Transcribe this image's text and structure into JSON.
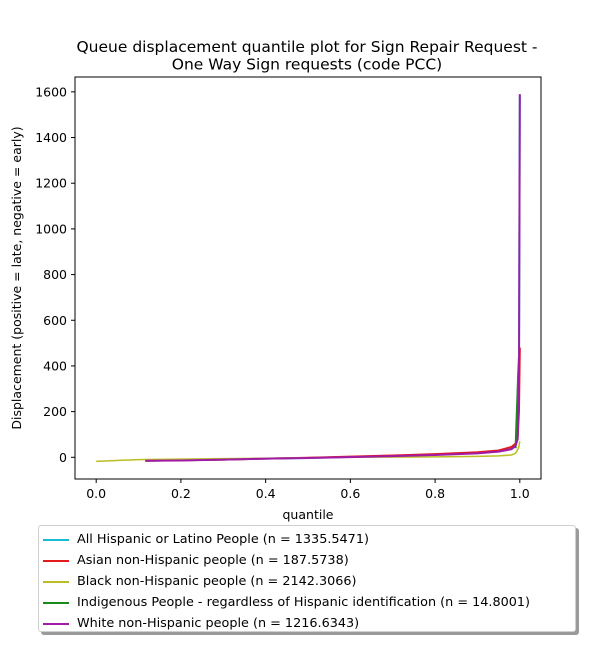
{
  "chart_data": {
    "type": "line",
    "title_lines": [
      "Queue displacement quantile plot for Sign Repair Request -",
      "One Way Sign  requests (code PCC)"
    ],
    "xlabel": "quantile",
    "ylabel": "Displacement (positive = late, negative = early)",
    "xlim": [
      -0.05,
      1.05
    ],
    "ylim": [
      -95,
      1665
    ],
    "x_ticks": [
      0.0,
      0.2,
      0.4,
      0.6,
      0.8,
      1.0
    ],
    "x_tick_labels": [
      "0.0",
      "0.2",
      "0.4",
      "0.6",
      "0.8",
      "1.0"
    ],
    "y_ticks": [
      0,
      200,
      400,
      600,
      800,
      1000,
      1200,
      1400,
      1600
    ],
    "y_tick_labels": [
      "0",
      "200",
      "400",
      "600",
      "800",
      "1000",
      "1200",
      "1400",
      "1600"
    ],
    "grid": false,
    "legend_position": "below",
    "series": [
      {
        "name": "All Hispanic or Latino People (n = 1335.5471)",
        "color": "#17becf",
        "x": [
          0.116,
          0.2,
          0.3,
          0.4,
          0.5,
          0.6,
          0.7,
          0.8,
          0.9,
          0.95,
          0.98,
          0.99,
          0.995,
          0.998,
          1.0
        ],
        "y": [
          -15,
          -13,
          -10,
          -6,
          -3,
          2,
          6,
          11,
          20,
          28,
          40,
          55,
          100,
          400,
          1585
        ]
      },
      {
        "name": "Asian non-Hispanic people (n = 187.5738)",
        "color": "#e41a1c",
        "x": [
          0.116,
          0.2,
          0.3,
          0.4,
          0.5,
          0.6,
          0.7,
          0.8,
          0.9,
          0.95,
          0.98,
          0.99,
          0.995,
          0.998,
          1.0
        ],
        "y": [
          -15,
          -13,
          -10,
          -6,
          -2,
          3,
          8,
          14,
          22,
          30,
          45,
          60,
          90,
          200,
          480
        ]
      },
      {
        "name": "Black non-Hispanic people (n = 2142.3066)",
        "color": "#bcbd22",
        "x": [
          0.0,
          0.1,
          0.2,
          0.3,
          0.4,
          0.5,
          0.6,
          0.7,
          0.8,
          0.9,
          0.95,
          0.98,
          0.99,
          0.997,
          1.0
        ],
        "y": [
          -18,
          -10,
          -8,
          -6,
          -4,
          -2,
          0,
          1,
          2,
          4,
          6,
          10,
          18,
          40,
          70
        ]
      },
      {
        "name": "Indigenous People - regardless of Hispanic identification (n = 14.8001)",
        "color": "#1a8a1a",
        "x": [
          0.99,
          0.992,
          0.994,
          0.996,
          0.998
        ],
        "y": [
          40,
          150,
          250,
          360,
          440
        ]
      },
      {
        "name": "White non-Hispanic people (n = 1216.6343)",
        "color": "#a01ca8",
        "x": [
          0.116,
          0.2,
          0.3,
          0.4,
          0.5,
          0.6,
          0.7,
          0.8,
          0.9,
          0.95,
          0.98,
          0.99,
          0.995,
          0.998,
          1.0
        ],
        "y": [
          -15,
          -14,
          -10,
          -6,
          -3,
          1,
          5,
          10,
          17,
          25,
          35,
          50,
          80,
          300,
          1590
        ]
      }
    ]
  }
}
